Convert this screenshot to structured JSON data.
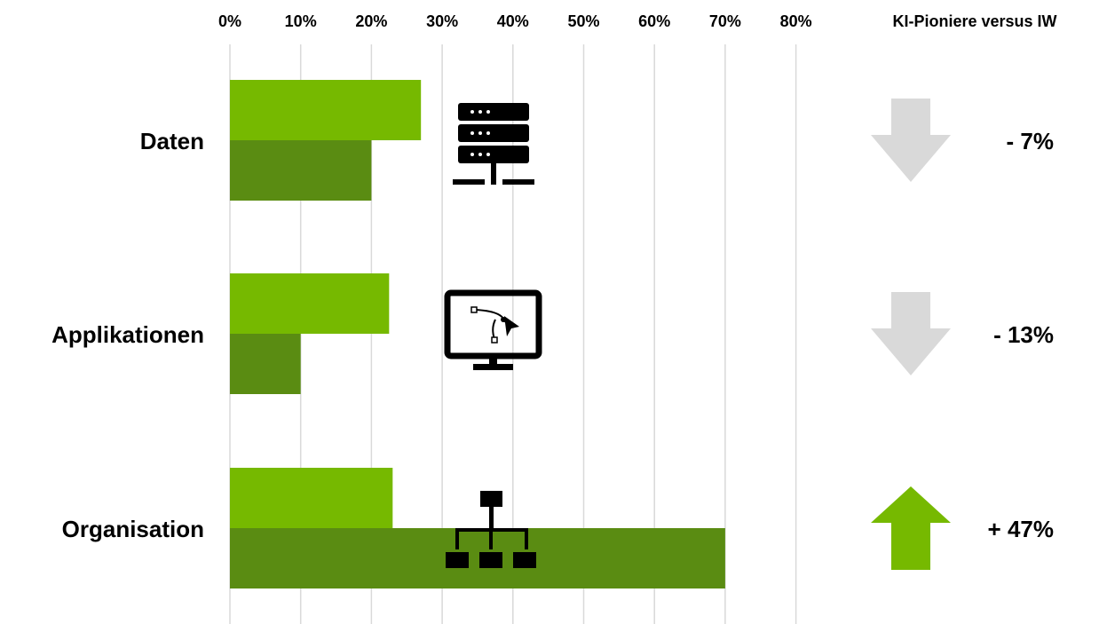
{
  "chart_data": {
    "type": "bar",
    "orientation": "horizontal",
    "x_ticks": [
      "0%",
      "10%",
      "20%",
      "30%",
      "40%",
      "50%",
      "60%",
      "70%",
      "80%"
    ],
    "xlim": [
      0,
      80
    ],
    "grid": true,
    "comparison_header": "KI-Pioniere versus IW",
    "colors": {
      "series_a": "#76b900",
      "series_b": "#5a8c12",
      "arrow_down": "#d9d9d9",
      "arrow_up": "#76b900"
    },
    "categories": [
      "Daten",
      "Applikationen",
      "Organisation"
    ],
    "series": [
      {
        "values": [
          27,
          22.5,
          23
        ]
      },
      {
        "values": [
          20,
          10,
          70
        ]
      }
    ],
    "icons": [
      "server-icon",
      "monitor-curve-icon",
      "org-chart-icon"
    ],
    "deltas": [
      {
        "label": "- 7%",
        "direction": "down"
      },
      {
        "label": "- 13%",
        "direction": "down"
      },
      {
        "label": "+ 47%",
        "direction": "up"
      }
    ]
  }
}
